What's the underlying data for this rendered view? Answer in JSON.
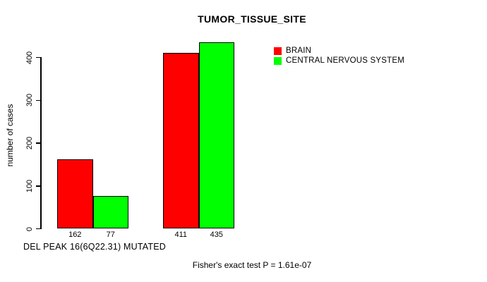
{
  "chart_data": {
    "type": "bar",
    "title": "TUMOR_TISSUE_SITE",
    "ylabel": "number of cases",
    "xlabel": "DEL PEAK 16(6Q22.31) MUTATED",
    "annotation": "Fisher's exact test P = 1.61e-07",
    "yticks": [
      0,
      100,
      200,
      300,
      400
    ],
    "ylim": [
      0,
      440
    ],
    "grid": false,
    "legend_position": "top-right-inside",
    "background_color": "#ffffff",
    "series": [
      {
        "name": "BRAIN",
        "color": "#ff0000",
        "values": [
          162,
          411
        ]
      },
      {
        "name": "CENTRAL NERVOUS SYSTEM",
        "color": "#00ff00",
        "values": [
          77,
          435
        ]
      }
    ],
    "bar_value_labels": [
      [
        162,
        77
      ],
      [
        411,
        435
      ]
    ]
  }
}
